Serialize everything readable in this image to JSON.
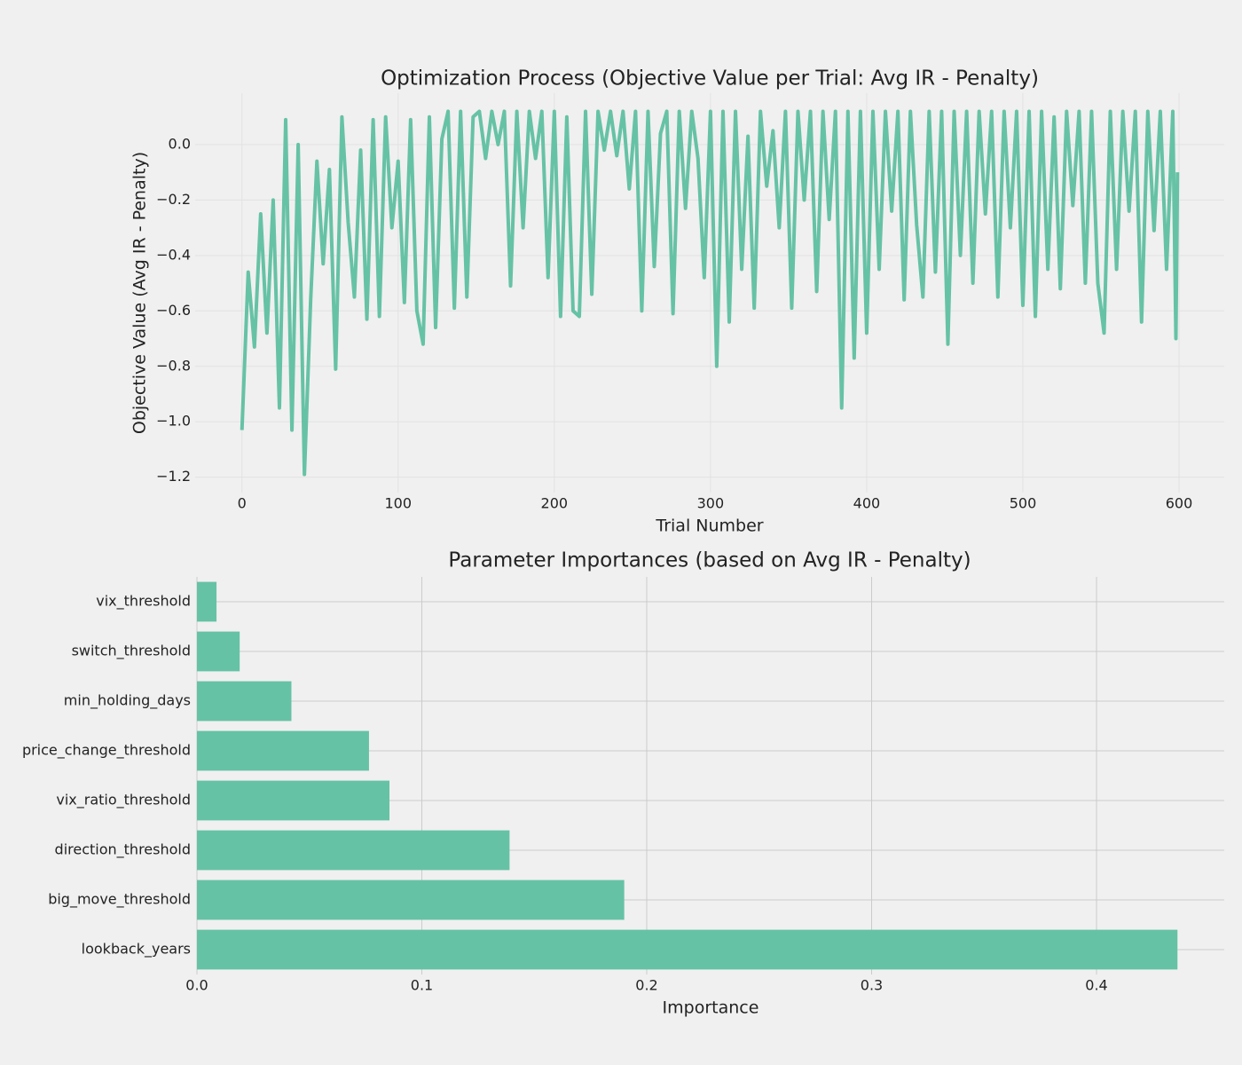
{
  "chart_data": [
    {
      "type": "line",
      "title": "Optimization Process (Objective Value per Trial: Avg IR - Penalty)",
      "xlabel": "Trial Number",
      "ylabel": "Objective Value (Avg IR - Penalty)",
      "x": [
        0,
        4,
        8,
        12,
        16,
        20,
        24,
        28,
        32,
        36,
        40,
        44,
        48,
        52,
        56,
        60,
        64,
        68,
        72,
        76,
        80,
        84,
        88,
        92,
        96,
        100,
        104,
        108,
        112,
        116,
        120,
        124,
        128,
        132,
        136,
        140,
        144,
        148,
        152,
        156,
        160,
        164,
        168,
        172,
        176,
        180,
        184,
        188,
        192,
        196,
        200,
        204,
        208,
        212,
        216,
        220,
        224,
        228,
        232,
        236,
        240,
        244,
        248,
        252,
        256,
        260,
        264,
        268,
        272,
        276,
        280,
        284,
        288,
        292,
        296,
        300,
        304,
        308,
        312,
        316,
        320,
        324,
        328,
        332,
        336,
        340,
        344,
        348,
        352,
        356,
        360,
        364,
        368,
        372,
        376,
        380,
        384,
        388,
        392,
        396,
        400,
        404,
        408,
        412,
        416,
        420,
        424,
        428,
        432,
        436,
        440,
        444,
        448,
        452,
        456,
        460,
        464,
        468,
        472,
        476,
        480,
        484,
        488,
        492,
        496,
        500,
        504,
        508,
        512,
        516,
        520,
        524,
        528,
        532,
        536,
        540,
        544,
        548,
        552,
        556,
        560,
        564,
        568,
        572,
        576,
        580,
        584,
        588,
        592,
        596,
        598,
        599
      ],
      "series": [
        {
          "name": "Objective Value",
          "color": "#66c2a5",
          "values": [
            -1.03,
            -0.46,
            -0.73,
            -0.25,
            -0.68,
            -0.2,
            -0.95,
            0.09,
            -1.03,
            0.0,
            -1.19,
            -0.56,
            -0.06,
            -0.43,
            -0.09,
            -0.81,
            0.1,
            -0.28,
            -0.55,
            -0.02,
            -0.63,
            0.09,
            -0.62,
            0.1,
            -0.3,
            -0.06,
            -0.57,
            0.09,
            -0.6,
            -0.72,
            0.1,
            -0.66,
            0.02,
            0.12,
            -0.59,
            0.12,
            -0.55,
            0.1,
            0.12,
            -0.05,
            0.12,
            0.0,
            0.12,
            -0.51,
            0.12,
            -0.3,
            0.12,
            -0.05,
            0.12,
            -0.48,
            0.12,
            -0.62,
            0.1,
            -0.6,
            -0.62,
            0.12,
            -0.54,
            0.12,
            -0.02,
            0.12,
            -0.04,
            0.12,
            -0.16,
            0.12,
            -0.6,
            0.12,
            -0.44,
            0.04,
            0.12,
            -0.61,
            0.12,
            -0.23,
            0.12,
            -0.05,
            -0.48,
            0.12,
            -0.8,
            0.12,
            -0.64,
            0.12,
            -0.45,
            0.03,
            -0.59,
            0.12,
            -0.15,
            0.05,
            -0.3,
            0.12,
            -0.59,
            0.12,
            -0.2,
            0.12,
            -0.53,
            0.12,
            -0.27,
            0.12,
            -0.95,
            0.12,
            -0.77,
            0.12,
            -0.68,
            0.12,
            -0.45,
            0.12,
            -0.24,
            0.12,
            -0.56,
            0.12,
            -0.29,
            -0.55,
            0.12,
            -0.46,
            0.12,
            -0.72,
            0.12,
            -0.4,
            0.12,
            -0.5,
            0.12,
            -0.25,
            0.12,
            -0.55,
            0.12,
            -0.3,
            0.12,
            -0.58,
            0.12,
            -0.62,
            0.12,
            -0.45,
            0.1,
            -0.52,
            0.12,
            -0.22,
            0.12,
            -0.5,
            0.12,
            -0.5,
            -0.68,
            0.12,
            -0.45,
            0.12,
            -0.24,
            0.12,
            -0.64,
            0.12,
            -0.31,
            0.12,
            -0.45,
            0.12,
            -0.7,
            -0.1
          ]
        }
      ],
      "xlim": [
        -29.95,
        628.95
      ],
      "ylim": [
        -1.2555,
        0.1855
      ],
      "xticks": [
        0,
        100,
        200,
        300,
        400,
        500,
        600
      ],
      "yticks": [
        {
          "value": -1.2,
          "label": "−1.2"
        },
        {
          "value": -1.0,
          "label": "−1.0"
        },
        {
          "value": -0.8,
          "label": "−0.8"
        },
        {
          "value": -0.6,
          "label": "−0.6"
        },
        {
          "value": -0.4,
          "label": "−0.4"
        },
        {
          "value": -0.2,
          "label": "−0.2"
        },
        {
          "value": 0,
          "label": "0.0"
        }
      ],
      "grid": true
    },
    {
      "type": "bar",
      "orientation": "horizontal",
      "title": "Parameter Importances (based on Avg IR - Penalty)",
      "xlabel": "Importance",
      "categories": [
        "vix_threshold",
        "switch_threshold",
        "min_holding_days",
        "price_change_threshold",
        "vix_ratio_threshold",
        "direction_threshold",
        "big_move_threshold",
        "lookback_years"
      ],
      "values": [
        0.0087,
        0.019,
        0.042,
        0.0765,
        0.0856,
        0.139,
        0.19,
        0.436
      ],
      "color": "#66c2a5",
      "xlim": [
        0,
        0.4568
      ],
      "xticks": [
        {
          "value": 0,
          "label": "0.0"
        },
        0.1,
        0.2,
        0.3,
        0.4
      ],
      "grid": true
    }
  ]
}
